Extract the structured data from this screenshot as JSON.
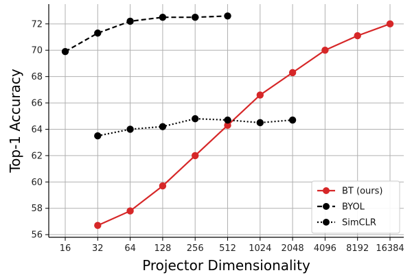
{
  "chart_data": {
    "type": "line",
    "title": "",
    "xlabel": "Projector Dimensionality",
    "ylabel": "Top-1 Accuracy",
    "x_scale": "log2",
    "categories": [
      "16",
      "32",
      "64",
      "128",
      "256",
      "512",
      "1024",
      "2048",
      "4096",
      "8192",
      "16384"
    ],
    "ylim": [
      55.8,
      73.5
    ],
    "yticks": [
      "56",
      "58",
      "60",
      "62",
      "64",
      "66",
      "68",
      "70",
      "72"
    ],
    "grid": true,
    "legend": "lower-right",
    "series": [
      {
        "name": "BT (ours)",
        "color": "#d62728",
        "style": "solid",
        "x": [
          32,
          64,
          128,
          256,
          512,
          1024,
          2048,
          4096,
          8192,
          16384
        ],
        "values": [
          56.7,
          57.8,
          59.7,
          62.0,
          64.3,
          66.6,
          68.3,
          70.0,
          71.1,
          72.0
        ]
      },
      {
        "name": "BYOL",
        "color": "#000000",
        "style": "dashed",
        "x": [
          16,
          32,
          64,
          128,
          256,
          512
        ],
        "values": [
          69.9,
          71.3,
          72.2,
          72.5,
          72.5,
          72.6
        ]
      },
      {
        "name": "SimCLR",
        "color": "#000000",
        "style": "dotted",
        "x": [
          32,
          64,
          128,
          256,
          512,
          1024,
          2048
        ],
        "values": [
          63.5,
          64.0,
          64.2,
          64.8,
          64.7,
          64.5,
          64.7
        ]
      }
    ]
  }
}
